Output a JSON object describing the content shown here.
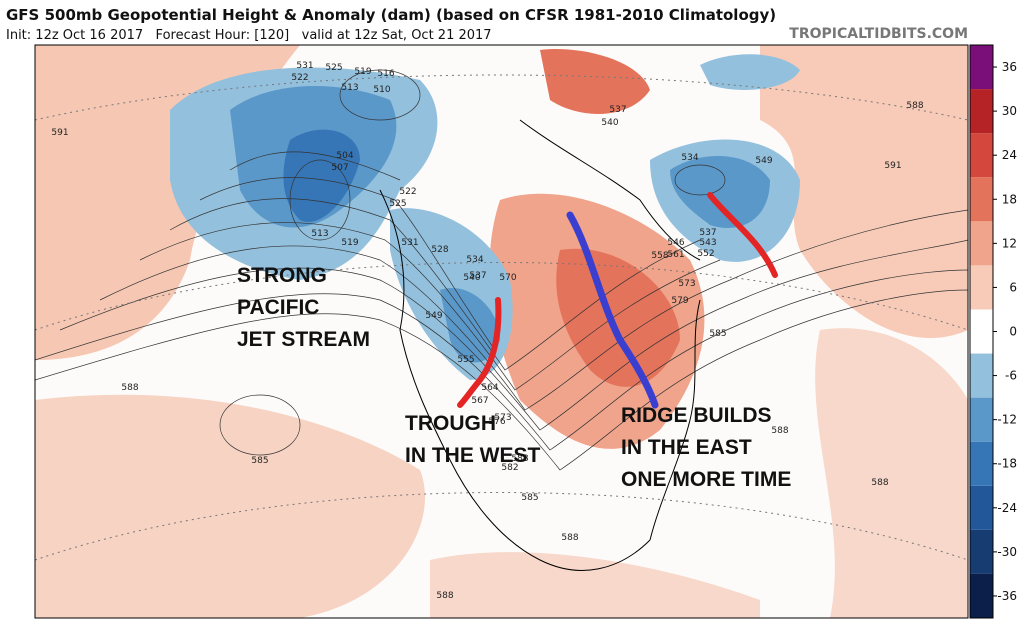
{
  "header": {
    "title": "GFS 500mb Geopotential Height & Anomaly (dam) (based on CFSR 1981-2010 Climatology)",
    "subtitle": "Init: 12z Oct 16 2017   Forecast Hour: [120]   valid at 12z Sat, Oct 21 2017",
    "source": "TROPICALTIDBITS.COM"
  },
  "colorbar": {
    "lim": [
      -39,
      39
    ],
    "ticks": [
      36,
      30,
      24,
      18,
      12,
      6,
      0,
      -6,
      -12,
      -18,
      -24,
      -30,
      -36
    ],
    "colors": [
      "#0c1f4a",
      "#173c72",
      "#22589a",
      "#3776b6",
      "#5b98ca",
      "#93c0dd",
      "#ffffff",
      "#f7cbb7",
      "#f0a48b",
      "#e4735c",
      "#d4473c",
      "#b52327",
      "#7a0f79"
    ]
  },
  "contour_labels": [
    "531",
    "525",
    "519",
    "516",
    "522",
    "513",
    "510",
    "504",
    "507",
    "513",
    "519",
    "522",
    "525",
    "531",
    "528",
    "534",
    "537",
    "540",
    "549",
    "555",
    "564",
    "567",
    "570",
    "576",
    "573",
    "582",
    "588",
    "585",
    "591",
    "588",
    "585",
    "588",
    "588",
    "537",
    "540",
    "546",
    "558",
    "561",
    "573",
    "579",
    "585",
    "588",
    "591",
    "534",
    "549",
    "537",
    "543",
    "552",
    "588",
    "588"
  ],
  "annotations": {
    "pacific": [
      "STRONG",
      "PACIFIC",
      "JET STREAM"
    ],
    "trough": [
      "TROUGH",
      "IN THE WEST"
    ],
    "ridge": [
      "RIDGE BUILDS",
      "IN THE EAST",
      "ONE MORE TIME"
    ]
  }
}
